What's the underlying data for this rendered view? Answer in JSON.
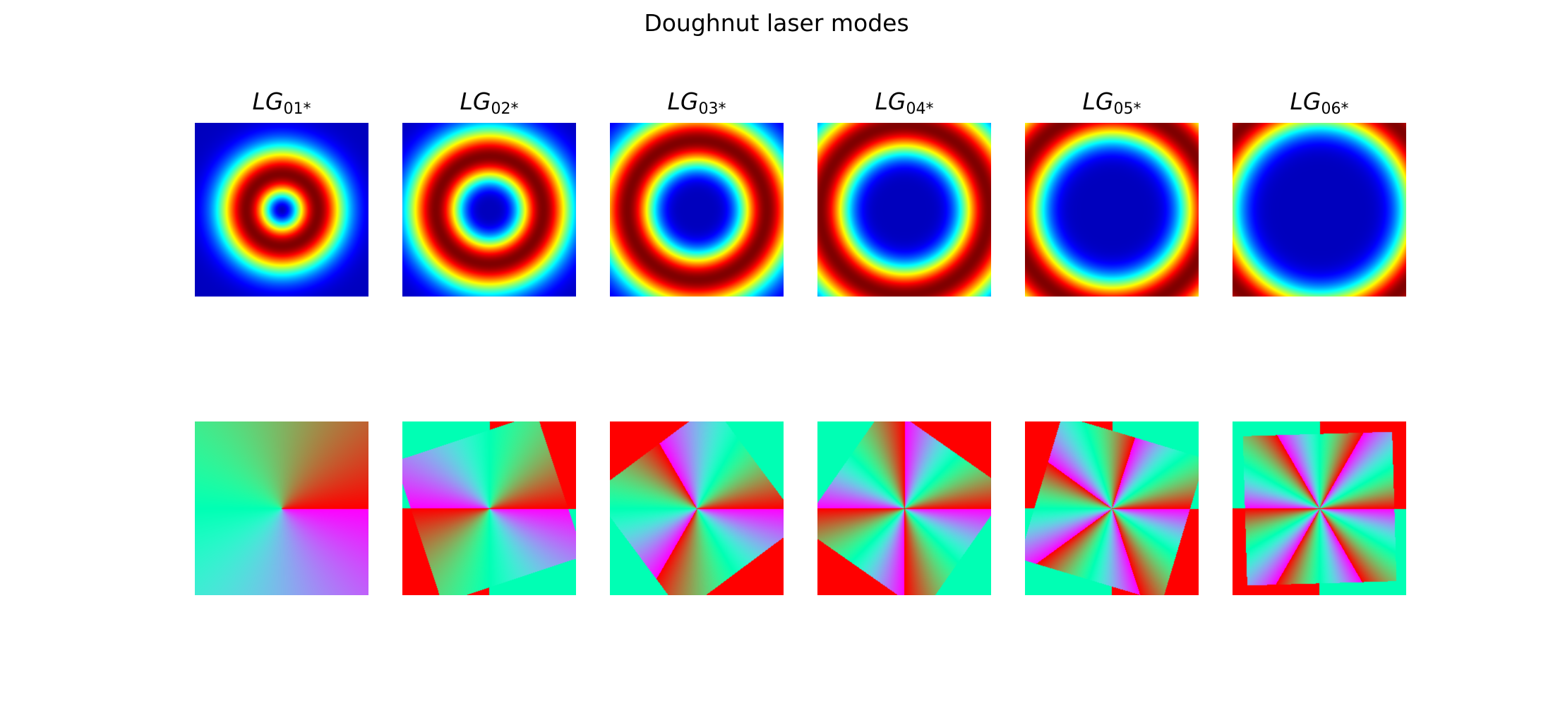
{
  "figure": {
    "title": "Doughnut laser modes",
    "colormap": "jet/rainbow"
  },
  "panels": [
    {
      "label_main": "LG",
      "label_sub": "01",
      "label_star": "*",
      "l": 1
    },
    {
      "label_main": "LG",
      "label_sub": "02",
      "label_star": "*",
      "l": 2
    },
    {
      "label_main": "LG",
      "label_sub": "03",
      "label_star": "*",
      "l": 3
    },
    {
      "label_main": "LG",
      "label_sub": "04",
      "label_star": "*",
      "l": 4
    },
    {
      "label_main": "LG",
      "label_sub": "05",
      "label_star": "*",
      "l": 5
    },
    {
      "label_main": "LG",
      "label_sub": "06",
      "label_star": "*",
      "l": 6
    }
  ]
}
